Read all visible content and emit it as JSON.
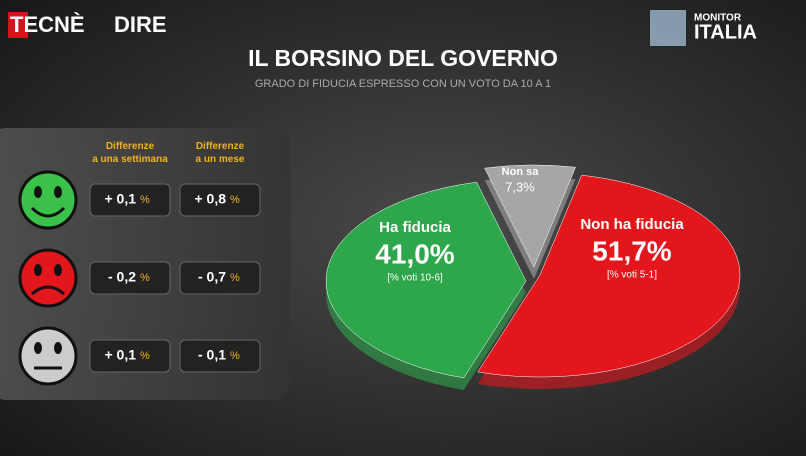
{
  "header": {
    "brand_left": "TECNÈ",
    "brand_mid": "DIRE",
    "brand_right_top": "MONITOR",
    "brand_right_bottom": "ITALIA"
  },
  "table": {
    "columns": [
      "Differenze\na una settimana",
      "Differenze\na un mese"
    ],
    "rows": [
      [
        "+ 0,1",
        "+ 0,8"
      ],
      [
        "- 0,2",
        "- 0,7"
      ],
      [
        "+ 0,1",
        "- 0,1"
      ]
    ],
    "unit": "%"
  },
  "chart_data": {
    "type": "pie",
    "title": "IL BORSINO DEL GOVERNO",
    "subtitle": "GRADO DI FIDUCIA ESPRESSO CON UN VOTO DA 10  A 1",
    "categories": [
      "Non ha fiducia",
      "Ha fiducia",
      "Non sa"
    ],
    "values": [
      51.7,
      41.0,
      7.3
    ],
    "value_labels": [
      "51,7%",
      "41,0%",
      "7,3%"
    ],
    "notes": [
      "[% voti 5-1]",
      "[% voti 10-6]",
      null
    ],
    "colors": [
      "#e3161c",
      "#2ea64c",
      "#a6a6a6"
    ]
  }
}
